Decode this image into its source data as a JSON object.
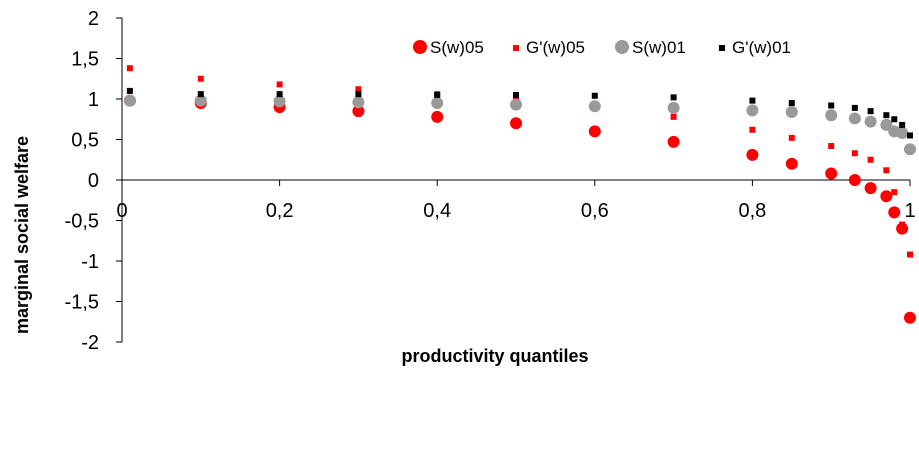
{
  "chart_data": {
    "type": "scatter",
    "xlabel": "productivity quantiles",
    "ylabel": "marginal social welfare",
    "xlim": [
      0,
      1
    ],
    "ylim": [
      -2,
      2
    ],
    "x_ticks": [
      "0",
      "0,2",
      "0,4",
      "0,6",
      "0,8",
      "1"
    ],
    "x_tick_values": [
      0,
      0.2,
      0.4,
      0.6,
      0.8,
      1
    ],
    "y_ticks": [
      "2",
      "1,5",
      "1",
      "0,5",
      "0",
      "-0,5",
      "-1",
      "-1,5",
      "-2"
    ],
    "y_tick_values": [
      2,
      1.5,
      1,
      0.5,
      0,
      -0.5,
      -1,
      -1.5,
      -2
    ],
    "grid": false,
    "legend_position": "top-right",
    "x": [
      0.01,
      0.1,
      0.2,
      0.3,
      0.4,
      0.5,
      0.6,
      0.7,
      0.8,
      0.85,
      0.9,
      0.93,
      0.95,
      0.97,
      0.98,
      0.99,
      1.0
    ],
    "series": [
      {
        "name": "S(w)05",
        "marker": "circle-large",
        "color": "#ff0000",
        "values": [
          0.98,
          0.95,
          0.9,
          0.85,
          0.78,
          0.7,
          0.6,
          0.47,
          0.31,
          0.2,
          0.08,
          0.0,
          -0.1,
          -0.2,
          -0.4,
          -0.6,
          -1.7
        ]
      },
      {
        "name": "G'(w)05",
        "marker": "square-small",
        "color": "#ff0000",
        "values": [
          1.38,
          1.25,
          1.18,
          1.12,
          1.06,
          0.99,
          0.9,
          0.78,
          0.62,
          0.52,
          0.42,
          0.33,
          0.25,
          0.12,
          -0.15,
          -0.55,
          -0.92
        ]
      },
      {
        "name": "S(w)01",
        "marker": "circle-large",
        "color": "#999999",
        "values": [
          0.98,
          0.98,
          0.97,
          0.96,
          0.95,
          0.93,
          0.91,
          0.89,
          0.86,
          0.84,
          0.8,
          0.76,
          0.72,
          0.68,
          0.6,
          0.58,
          0.38
        ]
      },
      {
        "name": "G'(w)01",
        "marker": "square-small",
        "color": "#000000",
        "values": [
          1.1,
          1.06,
          1.06,
          1.06,
          1.05,
          1.05,
          1.04,
          1.02,
          0.98,
          0.95,
          0.92,
          0.89,
          0.85,
          0.8,
          0.75,
          0.68,
          0.55
        ]
      }
    ]
  }
}
